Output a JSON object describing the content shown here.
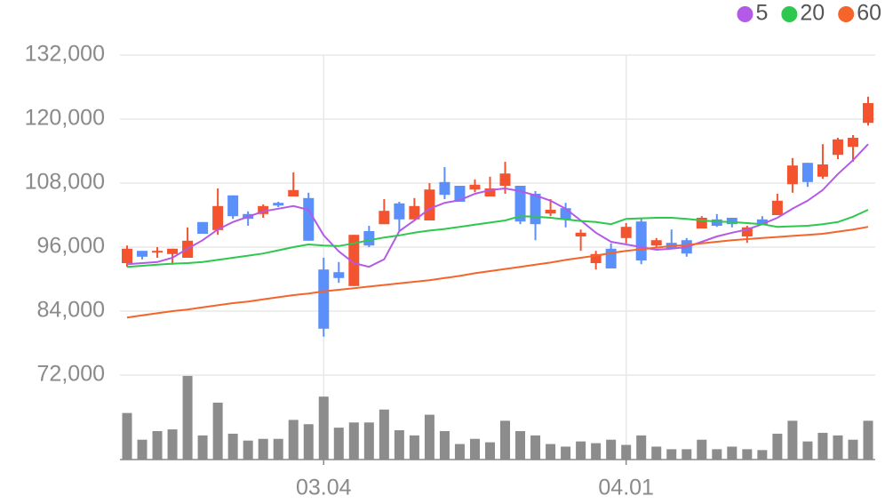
{
  "chart_data": {
    "type": "candlestick",
    "categories": [
      null,
      null,
      null,
      null,
      null,
      null,
      null,
      null,
      null,
      null,
      null,
      null,
      null,
      "03.04",
      null,
      null,
      null,
      null,
      null,
      null,
      null,
      null,
      null,
      null,
      null,
      null,
      null,
      null,
      null,
      null,
      null,
      null,
      null,
      "04.01",
      null,
      null,
      null,
      null,
      null,
      null,
      null,
      null,
      null,
      null,
      null,
      null,
      null,
      null,
      null,
      null
    ],
    "open": [
      93000,
      95300,
      95000,
      94700,
      94000,
      100700,
      99200,
      105700,
      102200,
      102200,
      104300,
      105500,
      105200,
      91800,
      91300,
      88700,
      99000,
      100300,
      104200,
      101200,
      101000,
      108200,
      107500,
      106800,
      105500,
      107500,
      107500,
      106000,
      102300,
      103300,
      98000,
      93000,
      95700,
      97700,
      100800,
      96300,
      96800,
      97300,
      99500,
      101200,
      101500,
      98000,
      101200,
      102000,
      107800,
      111800,
      109200,
      113300,
      114800,
      119300
    ],
    "high": [
      96300,
      95300,
      96000,
      95700,
      99700,
      100700,
      107000,
      105700,
      102700,
      104000,
      104500,
      110000,
      106200,
      94000,
      93200,
      98300,
      100000,
      105000,
      104500,
      105200,
      108000,
      111000,
      107500,
      108700,
      109200,
      112000,
      107500,
      106500,
      105000,
      104300,
      99300,
      95300,
      96700,
      100500,
      101300,
      97700,
      99300,
      97700,
      101800,
      102200,
      101500,
      100000,
      101800,
      106000,
      112700,
      111800,
      115300,
      116500,
      117000,
      124200
    ],
    "low": [
      92300,
      93700,
      94000,
      92700,
      94000,
      98500,
      98300,
      101300,
      100000,
      101500,
      103500,
      105500,
      97200,
      79200,
      89300,
      88700,
      96000,
      100300,
      99000,
      101200,
      101000,
      105000,
      104500,
      106300,
      105500,
      106000,
      100300,
      97300,
      101800,
      99700,
      95300,
      91800,
      92000,
      96700,
      92800,
      96000,
      95800,
      94200,
      99500,
      99800,
      99700,
      96800,
      100200,
      102000,
      106200,
      107300,
      108800,
      112500,
      112000,
      118800
    ],
    "close": [
      95700,
      94200,
      95300,
      95700,
      97200,
      98500,
      103700,
      101800,
      101300,
      103700,
      103800,
      106700,
      97200,
      80700,
      90200,
      98300,
      96300,
      102800,
      101200,
      103700,
      106800,
      105800,
      104500,
      107700,
      107000,
      109800,
      100800,
      100300,
      103000,
      101200,
      98700,
      94700,
      92000,
      99800,
      93500,
      97300,
      95800,
      94800,
      101500,
      100000,
      100300,
      99700,
      100200,
      104700,
      111300,
      108200,
      111500,
      116200,
      116500,
      123000
    ],
    "up_color": "#f4532f",
    "down_color": "#5b8ff9",
    "series": [
      {
        "name": "5",
        "color": "#b35ae6",
        "values": [
          92800,
          93000,
          93200,
          94000,
          95700,
          97300,
          99300,
          100700,
          101700,
          102700,
          103200,
          103700,
          103000,
          98200,
          95200,
          93000,
          92300,
          93700,
          99000,
          101000,
          103200,
          104300,
          104800,
          106000,
          106700,
          107000,
          106500,
          105700,
          104700,
          103200,
          101000,
          98700,
          97000,
          96500,
          96000,
          95500,
          95700,
          96000,
          97000,
          98000,
          98700,
          99300,
          100300,
          101500,
          103200,
          104700,
          106700,
          109700,
          112300,
          115300
        ]
      },
      {
        "name": "20",
        "color": "#2dc84d",
        "values": [
          92300,
          92500,
          92700,
          92900,
          93000,
          93200,
          93600,
          94000,
          94400,
          94800,
          95400,
          96000,
          96500,
          96300,
          96200,
          96700,
          97300,
          97800,
          98200,
          98700,
          99100,
          99400,
          99800,
          100200,
          100600,
          101000,
          101800,
          101700,
          101500,
          101200,
          100900,
          100700,
          100300,
          101300,
          101400,
          101500,
          101500,
          101300,
          101000,
          100800,
          100700,
          100500,
          100300,
          99800,
          99900,
          100000,
          100300,
          100700,
          101700,
          103000
        ]
      },
      {
        "name": "60",
        "color": "#f5642a",
        "values": [
          82800,
          83200,
          83600,
          84000,
          84300,
          84700,
          85100,
          85500,
          85800,
          86200,
          86600,
          87000,
          87300,
          87700,
          88000,
          88300,
          88600,
          88900,
          89200,
          89500,
          89800,
          90200,
          90600,
          91100,
          91500,
          91900,
          92300,
          92700,
          93100,
          93600,
          94000,
          94400,
          94900,
          95300,
          95600,
          95900,
          96200,
          96400,
          96700,
          97000,
          97300,
          97500,
          97700,
          97900,
          98100,
          98300,
          98500,
          98900,
          99300,
          99800
        ]
      }
    ],
    "volume": {
      "color": "#8c8c8c",
      "ylim": [
        0,
        100
      ],
      "values": [
        54,
        23,
        33,
        35,
        97,
        28,
        66,
        30,
        22,
        24,
        24,
        46,
        41,
        73,
        37,
        43,
        43,
        58,
        34,
        28,
        52,
        33,
        18,
        24,
        20,
        45,
        33,
        28,
        18,
        15,
        21,
        19,
        23,
        17,
        28,
        15,
        12,
        12,
        23,
        12,
        15,
        12,
        11,
        30,
        45,
        21,
        31,
        28,
        23,
        45
      ]
    },
    "ylim": [
      72000,
      132000
    ],
    "yticks": [
      {
        "value": 72000,
        "label": "72,000"
      },
      {
        "value": 84000,
        "label": "84,000"
      },
      {
        "value": 96000,
        "label": "96,000"
      },
      {
        "value": 108000,
        "label": "108,000"
      },
      {
        "value": 120000,
        "label": "120,000"
      },
      {
        "value": 132000,
        "label": "132,000"
      }
    ],
    "grid": true,
    "legend": "top-right"
  }
}
